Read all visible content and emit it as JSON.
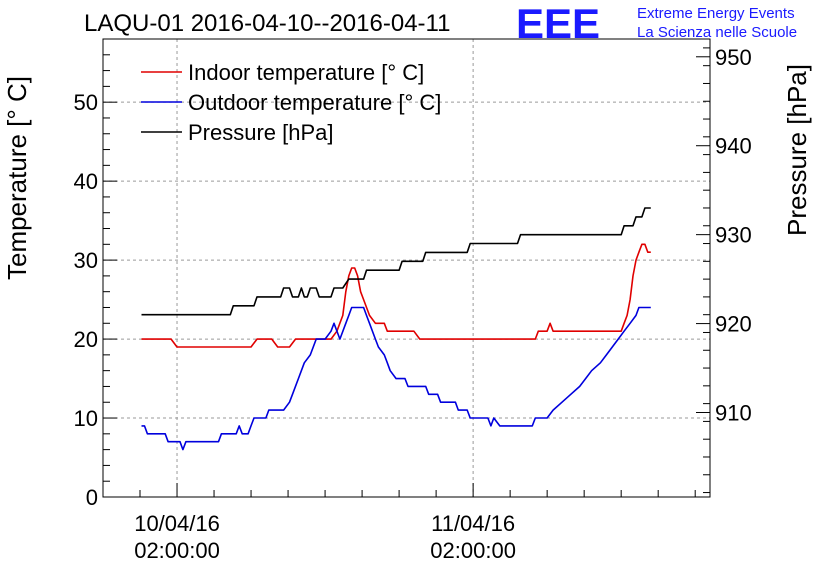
{
  "chart_data": {
    "type": "line",
    "title": "LAQU-01 2016-04-10--2016-04-11",
    "logo": {
      "text": "EEE",
      "line1": "Extreme Energy Events",
      "line2": "La Scienza nelle Scuole",
      "color": "#1a1aff"
    },
    "ylabel": "Temperature [° C]",
    "y2label": "Pressure [hPa]",
    "ylim": [
      0,
      58
    ],
    "y2lim": [
      900.5,
      952
    ],
    "xlim": [
      -0.25,
      1.8
    ],
    "yticks": [
      0,
      10,
      20,
      30,
      40,
      50
    ],
    "y2ticks": [
      910,
      920,
      930,
      940,
      950
    ],
    "xticks": [
      {
        "x": 0,
        "line1": "10/04/16",
        "line2": "02:00:00"
      },
      {
        "x": 1,
        "line1": "11/04/16",
        "line2": "02:00:00"
      }
    ],
    "grid": true,
    "legend_position": "top-left",
    "series": [
      {
        "name": "Indoor temperature [° C]",
        "axis": "left",
        "color": "#e00000",
        "points": [
          [
            -0.12,
            20
          ],
          [
            -0.02,
            20
          ],
          [
            0.0,
            19
          ],
          [
            0.25,
            19
          ],
          [
            0.27,
            20
          ],
          [
            0.32,
            20
          ],
          [
            0.34,
            19
          ],
          [
            0.38,
            19
          ],
          [
            0.4,
            20
          ],
          [
            0.52,
            20
          ],
          [
            0.54,
            21
          ],
          [
            0.56,
            23
          ],
          [
            0.57,
            26
          ],
          [
            0.58,
            28
          ],
          [
            0.59,
            29
          ],
          [
            0.6,
            29
          ],
          [
            0.61,
            28
          ],
          [
            0.62,
            26
          ],
          [
            0.63,
            25
          ],
          [
            0.65,
            23
          ],
          [
            0.67,
            22
          ],
          [
            0.7,
            22
          ],
          [
            0.71,
            21
          ],
          [
            0.8,
            21
          ],
          [
            0.82,
            20
          ],
          [
            1.21,
            20
          ],
          [
            1.22,
            21
          ],
          [
            1.25,
            21
          ],
          [
            1.26,
            22
          ],
          [
            1.27,
            21
          ],
          [
            1.5,
            21
          ],
          [
            1.51,
            22
          ],
          [
            1.52,
            23
          ],
          [
            1.53,
            25
          ],
          [
            1.54,
            28
          ],
          [
            1.55,
            30
          ],
          [
            1.56,
            31
          ],
          [
            1.57,
            32
          ],
          [
            1.58,
            32
          ],
          [
            1.59,
            31
          ],
          [
            1.6,
            31
          ]
        ]
      },
      {
        "name": "Outdoor temperature [° C]",
        "axis": "left",
        "color": "#0000dd",
        "points": [
          [
            -0.12,
            9
          ],
          [
            -0.11,
            9
          ],
          [
            -0.1,
            8
          ],
          [
            -0.04,
            8
          ],
          [
            -0.03,
            7
          ],
          [
            0.01,
            7
          ],
          [
            0.02,
            6
          ],
          [
            0.03,
            7
          ],
          [
            0.14,
            7
          ],
          [
            0.15,
            8
          ],
          [
            0.2,
            8
          ],
          [
            0.21,
            9
          ],
          [
            0.22,
            8
          ],
          [
            0.24,
            8
          ],
          [
            0.25,
            9
          ],
          [
            0.26,
            10
          ],
          [
            0.3,
            10
          ],
          [
            0.31,
            11
          ],
          [
            0.36,
            11
          ],
          [
            0.38,
            12
          ],
          [
            0.39,
            13
          ],
          [
            0.41,
            15
          ],
          [
            0.43,
            17
          ],
          [
            0.45,
            18
          ],
          [
            0.47,
            20
          ],
          [
            0.5,
            20
          ],
          [
            0.52,
            21
          ],
          [
            0.53,
            22
          ],
          [
            0.55,
            20
          ],
          [
            0.57,
            22
          ],
          [
            0.58,
            23
          ],
          [
            0.59,
            24
          ],
          [
            0.63,
            24
          ],
          [
            0.64,
            23
          ],
          [
            0.65,
            22
          ],
          [
            0.67,
            20
          ],
          [
            0.68,
            19
          ],
          [
            0.7,
            18
          ],
          [
            0.71,
            17
          ],
          [
            0.72,
            16
          ],
          [
            0.74,
            15
          ],
          [
            0.77,
            15
          ],
          [
            0.78,
            14
          ],
          [
            0.84,
            14
          ],
          [
            0.85,
            13
          ],
          [
            0.88,
            13
          ],
          [
            0.89,
            12
          ],
          [
            0.94,
            12
          ],
          [
            0.95,
            11
          ],
          [
            0.98,
            11
          ],
          [
            0.99,
            10
          ],
          [
            1.05,
            10
          ],
          [
            1.06,
            9
          ],
          [
            1.07,
            10
          ],
          [
            1.09,
            9
          ],
          [
            1.2,
            9
          ],
          [
            1.21,
            10
          ],
          [
            1.25,
            10
          ],
          [
            1.27,
            11
          ],
          [
            1.3,
            12
          ],
          [
            1.33,
            13
          ],
          [
            1.36,
            14
          ],
          [
            1.38,
            15
          ],
          [
            1.4,
            16
          ],
          [
            1.43,
            17
          ],
          [
            1.45,
            18
          ],
          [
            1.47,
            19
          ],
          [
            1.49,
            20
          ],
          [
            1.51,
            21
          ],
          [
            1.53,
            22
          ],
          [
            1.55,
            23
          ],
          [
            1.56,
            24
          ],
          [
            1.6,
            24
          ]
        ]
      },
      {
        "name": "Pressure [hPa]",
        "axis": "right",
        "color": "#000000",
        "points": [
          [
            -0.12,
            921
          ],
          [
            0.18,
            921
          ],
          [
            0.19,
            922
          ],
          [
            0.26,
            922
          ],
          [
            0.27,
            923
          ],
          [
            0.35,
            923
          ],
          [
            0.36,
            924
          ],
          [
            0.38,
            924
          ],
          [
            0.39,
            923
          ],
          [
            0.41,
            923
          ],
          [
            0.42,
            924
          ],
          [
            0.43,
            923
          ],
          [
            0.44,
            923
          ],
          [
            0.45,
            924
          ],
          [
            0.47,
            924
          ],
          [
            0.48,
            923
          ],
          [
            0.52,
            923
          ],
          [
            0.53,
            924
          ],
          [
            0.56,
            924
          ],
          [
            0.58,
            925
          ],
          [
            0.63,
            925
          ],
          [
            0.64,
            926
          ],
          [
            0.75,
            926
          ],
          [
            0.76,
            927
          ],
          [
            0.83,
            927
          ],
          [
            0.84,
            928
          ],
          [
            0.98,
            928
          ],
          [
            0.99,
            929
          ],
          [
            1.15,
            929
          ],
          [
            1.16,
            930
          ],
          [
            1.5,
            930
          ],
          [
            1.51,
            931
          ],
          [
            1.54,
            931
          ],
          [
            1.55,
            932
          ],
          [
            1.57,
            932
          ],
          [
            1.58,
            933
          ],
          [
            1.6,
            933
          ]
        ]
      }
    ]
  }
}
